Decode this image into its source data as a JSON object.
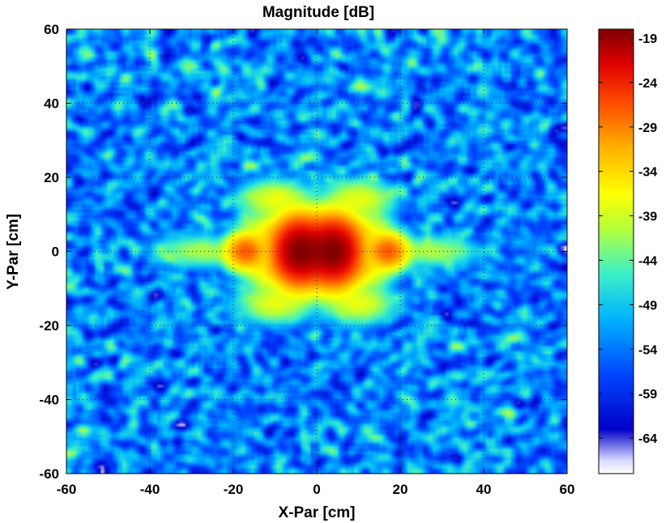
{
  "chart_data": {
    "type": "heatmap",
    "title": "Magnitude [dB]",
    "xlabel": "X-Par [cm]",
    "ylabel": "Y-Par [cm]",
    "xlim": [
      -60,
      60
    ],
    "ylim": [
      -60,
      60
    ],
    "xticks": [
      "-60",
      "-40",
      "-20",
      "0",
      "20",
      "40",
      "60"
    ],
    "xtick_values": [
      -60,
      -40,
      -20,
      0,
      20,
      40,
      60
    ],
    "yticks": [
      "60",
      "40",
      "20",
      "0",
      "-20",
      "-40",
      "-60"
    ],
    "ytick_values": [
      60,
      40,
      20,
      0,
      -20,
      -40,
      -60
    ],
    "grid": true,
    "colorbar": {
      "range": [
        -68,
        -18
      ],
      "ticks": [
        "-19",
        "-24",
        "-29",
        "-34",
        "-39",
        "-44",
        "-49",
        "-54",
        "-59",
        "-64"
      ],
      "tick_values": [
        -19,
        -24,
        -29,
        -34,
        -39,
        -44,
        -49,
        -54,
        -59,
        -64
      ],
      "colormap": "jet"
    },
    "background_level_db": -53,
    "features": [
      {
        "x": -4,
        "y": 0,
        "db": -18,
        "sx": 3.0,
        "sy": 4.0
      },
      {
        "x": 4,
        "y": 0,
        "db": -18,
        "sx": 3.0,
        "sy": 4.0
      },
      {
        "x": -17,
        "y": 0,
        "db": -27,
        "sx": 2.2,
        "sy": 2.2
      },
      {
        "x": 17,
        "y": 0,
        "db": -27,
        "sx": 2.2,
        "sy": 2.2
      },
      {
        "x": -10,
        "y": 14,
        "db": -38,
        "sx": 4.0,
        "sy": 2.5
      },
      {
        "x": 10,
        "y": 14,
        "db": -38,
        "sx": 4.0,
        "sy": 2.5
      },
      {
        "x": -10,
        "y": -14,
        "db": -38,
        "sx": 4.0,
        "sy": 2.5
      },
      {
        "x": 10,
        "y": -14,
        "db": -38,
        "sx": 4.0,
        "sy": 2.5
      },
      {
        "x": -12,
        "y": 5,
        "db": -37,
        "sx": 3.0,
        "sy": 2.5
      },
      {
        "x": 12,
        "y": 5,
        "db": -37,
        "sx": 3.0,
        "sy": 2.5
      },
      {
        "x": -12,
        "y": -5,
        "db": -37,
        "sx": 3.0,
        "sy": 2.5
      },
      {
        "x": 12,
        "y": -5,
        "db": -37,
        "sx": 3.0,
        "sy": 2.5
      },
      {
        "x": -28,
        "y": 0,
        "db": -41,
        "sx": 5.0,
        "sy": 2.0
      },
      {
        "x": 28,
        "y": 0,
        "db": -41,
        "sx": 5.0,
        "sy": 2.0
      }
    ]
  }
}
